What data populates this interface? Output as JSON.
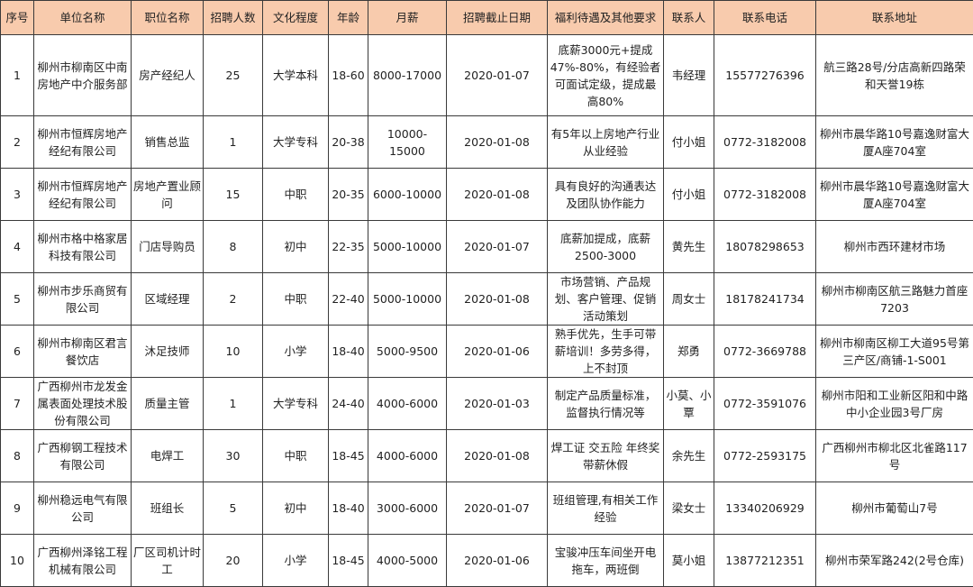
{
  "header_color": "#f8cbad",
  "columns": [
    "序号",
    "单位名称",
    "职位名称",
    "招聘人数",
    "文化程度",
    "年龄",
    "月薪",
    "招聘截止日期",
    "福利待遇及其他要求",
    "联系人",
    "联系电话",
    "联系地址"
  ],
  "rows": [
    [
      "1",
      "柳州市柳南区中南房地产中介服务部",
      "房产经纪人",
      "25",
      "大学本科",
      "18-60",
      "8000-17000",
      "2020-01-07",
      "底薪3000元+提成47%-80%，有经验者可面试定级，提成最高80%",
      "韦经理",
      "15577276396",
      "航三路28号/分店高新四路荣和天誉19栋"
    ],
    [
      "2",
      "柳州市恒辉房地产经纪有限公司",
      "销售总监",
      "1",
      "大学专科",
      "20-38",
      "10000-15000",
      "2020-01-08",
      "有5年以上房地产行业从业经验",
      "付小姐",
      "0772-3182008",
      "柳州市晨华路10号嘉逸财富大厦A座704室"
    ],
    [
      "3",
      "柳州市恒辉房地产经纪有限公司",
      "房地产置业顾问",
      "15",
      "中职",
      "20-35",
      "6000-10000",
      "2020-01-08",
      "具有良好的沟通表达及团队协作能力",
      "付小姐",
      "0772-3182008",
      "柳州市晨华路10号嘉逸财富大厦A座704室"
    ],
    [
      "4",
      "柳州市格中格家居科技有限公司",
      "门店导购员",
      "8",
      "初中",
      "22-35",
      "5000-10000",
      "2020-01-07",
      "底薪加提成，底薪2500-3000",
      "黄先生",
      "18078298653",
      "柳州市西环建材市场"
    ],
    [
      "5",
      "柳州市步乐商贸有限公司",
      "区域经理",
      "2",
      "中职",
      "22-40",
      "5000-10000",
      "2020-01-08",
      "市场营销、产品规划、客户管理、促销活动策划",
      "周女士",
      "18178241734",
      "柳州市柳南区航三路魅力首座7203"
    ],
    [
      "6",
      "柳州市柳南区君言餐饮店",
      "沐足技师",
      "10",
      "小学",
      "18-40",
      "5000-9500",
      "2020-01-06",
      "熟手优先，生手可带薪培训！多劳多得，上不封顶",
      "郑勇",
      "0772-3669788",
      "柳州市柳南区柳工大道95号第三产区/商铺-1-S001"
    ],
    [
      "7",
      "广西柳州市龙发金属表面处理技术股份有限公司",
      "质量主管",
      "1",
      "大学专科",
      "24-40",
      "4000-6000",
      "2020-01-03",
      "制定产品质量标准，监督执行情况等",
      "小莫、小覃",
      "0772-3591076",
      "柳州市阳和工业新区阳和中路中小企业园3号厂房"
    ],
    [
      "8",
      "广西柳钢工程技术有限公司",
      "电焊工",
      "30",
      "中职",
      "18-45",
      "4000-6000",
      "2020-01-08",
      "焊工证  交五险  年终奖 带薪休假",
      "余先生",
      "0772-2593175",
      "广西柳州市柳北区北雀路117号"
    ],
    [
      "9",
      "柳州稳远电气有限公司",
      "班组长",
      "5",
      "初中",
      "18-40",
      "3000-6000",
      "2020-01-07",
      "班组管理,有相关工作经验",
      "梁女士",
      "13340206929",
      "柳州市葡萄山7号"
    ],
    [
      "10",
      "广西柳州泽铭工程机械有限公司",
      "厂区司机计时工",
      "20",
      "小学",
      "18-45",
      "4000-5000",
      "2020-01-06",
      "宝骏冲压车间坐开电拖车，两班倒",
      "莫小姐",
      "13877212351",
      "柳州市荣军路242(2号仓库)"
    ]
  ]
}
